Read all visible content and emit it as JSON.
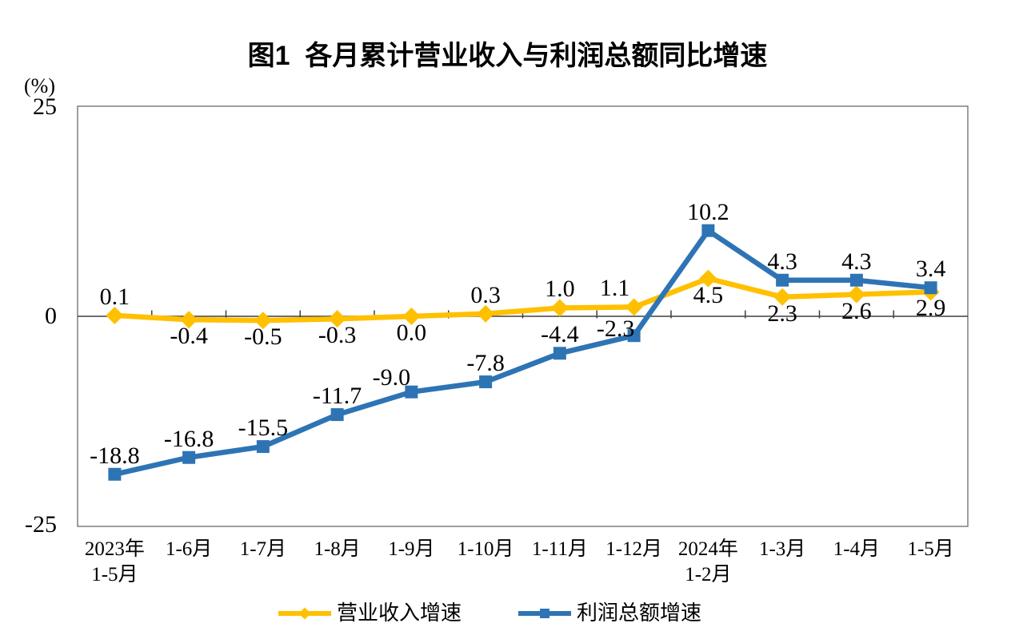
{
  "chart_data": {
    "type": "line",
    "title": "图1  各月累计营业收入与利润总额同比增速",
    "unit_label": "(%)",
    "categories": [
      "2023年\n1-5月",
      "1-6月",
      "1-7月",
      "1-8月",
      "1-9月",
      "1-10月",
      "1-11月",
      "1-12月",
      "2024年\n1-2月",
      "1-3月",
      "1-4月",
      "1-5月"
    ],
    "ylim": [
      -25,
      25
    ],
    "yticks": [
      25,
      0,
      -25
    ],
    "grid": false,
    "legend_position": "bottom",
    "axis_color": "#7F7F7F",
    "zero_line_color": "#3F3F3F",
    "series": [
      {
        "name": "营业收入增速",
        "color": "#FFC000",
        "marker": "diamond",
        "values": [
          0.1,
          -0.4,
          -0.5,
          -0.3,
          0.0,
          0.3,
          1.0,
          1.1,
          4.5,
          2.3,
          2.6,
          2.9
        ],
        "label_positions": [
          "above",
          "below",
          "below",
          "below",
          "below",
          "above",
          "above",
          "above",
          "below",
          "below",
          "below",
          "below"
        ]
      },
      {
        "name": "利润总额增速",
        "color": "#2E74B5",
        "marker": "square",
        "values": [
          -18.8,
          -16.8,
          -15.5,
          -11.7,
          -9.0,
          -7.8,
          -4.4,
          -2.3,
          10.2,
          4.3,
          4.3,
          3.4
        ],
        "label_positions": [
          "above",
          "above",
          "above",
          "above",
          "above",
          "above",
          "above",
          "above",
          "above",
          "above",
          "above",
          "above"
        ]
      }
    ]
  }
}
